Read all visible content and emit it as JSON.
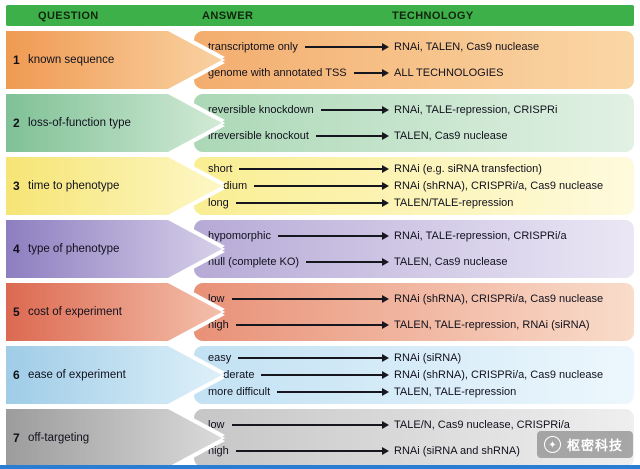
{
  "header": {
    "question_label": "QUESTION",
    "answer_label": "ANSWER",
    "technology_label": "TECHNOLOGY",
    "bg_color": "#3eb049"
  },
  "rows": [
    {
      "num": "1",
      "question": "known sequence",
      "colors": {
        "q_from": "#f09a52",
        "q_to": "#f9d2a2",
        "a_from": "#f3ad6e",
        "a_to": "#fad7a6"
      },
      "answers": [
        {
          "label": "transcriptome only",
          "tech": "RNAi, TALEN, Cas9 nuclease"
        },
        {
          "label": "genome with annotated TSS",
          "tech": "ALL TECHNOLOGIES"
        }
      ]
    },
    {
      "num": "2",
      "question": "loss-of-function type",
      "colors": {
        "q_from": "#7fc196",
        "q_to": "#d2ead6",
        "a_from": "#abd8b6",
        "a_to": "#e2f1e4"
      },
      "answers": [
        {
          "label": "reversible knockdown",
          "tech": "RNAi, TALE-repression, CRISPRi"
        },
        {
          "label": "irreversible knockout",
          "tech": "TALEN, Cas9 nuclease"
        }
      ]
    },
    {
      "num": "3",
      "question": "time to phenotype",
      "colors": {
        "q_from": "#f6e575",
        "q_to": "#fdf7c5",
        "a_from": "#faee92",
        "a_to": "#fefadd"
      },
      "answers": [
        {
          "label": "short",
          "tech": "RNAi (e.g. siRNA transfection)"
        },
        {
          "label": "medium",
          "tech": "RNAi (shRNA), CRISPRi/a, Cas9 nuclease"
        },
        {
          "label": "long",
          "tech": "TALEN/TALE-repression"
        }
      ]
    },
    {
      "num": "4",
      "question": "type of phenotype",
      "colors": {
        "q_from": "#8d7ec0",
        "q_to": "#d7d0e9",
        "a_from": "#b6aad6",
        "a_to": "#ebe7f5"
      },
      "answers": [
        {
          "label": "hypomorphic",
          "tech": "RNAi, TALE-repression, CRISPRi/a"
        },
        {
          "label": "null (complete KO)",
          "tech": "TALEN, Cas9 nuclease"
        }
      ]
    },
    {
      "num": "5",
      "question": "cost of experiment",
      "colors": {
        "q_from": "#dc6951",
        "q_to": "#f4c0ab",
        "a_from": "#e89177",
        "a_to": "#f9dccb"
      },
      "answers": [
        {
          "label": "low",
          "tech": "RNAi (shRNA), CRISPRi/a, Cas9 nuclease"
        },
        {
          "label": "high",
          "tech": "TALEN, TALE-repression, RNAi (siRNA)"
        }
      ]
    },
    {
      "num": "6",
      "question": "ease of experiment",
      "colors": {
        "q_from": "#9fcce7",
        "q_to": "#def0f9",
        "a_from": "#c2e1f3",
        "a_to": "#edf7fd"
      },
      "answers": [
        {
          "label": "easy",
          "tech": "RNAi (siRNA)"
        },
        {
          "label": "moderate",
          "tech": "RNAi (shRNA), CRISPRi/a, Cas9 nuclease"
        },
        {
          "label": "more difficult",
          "tech": "TALEN, TALE-repression"
        }
      ]
    },
    {
      "num": "7",
      "question": "off-targeting",
      "colors": {
        "q_from": "#9c9c9c",
        "q_to": "#dadada",
        "a_from": "#c6c6c6",
        "a_to": "#efefef"
      },
      "answers": [
        {
          "label": "low",
          "tech": "TALE/N, Cas9 nuclease, CRISPRi/a"
        },
        {
          "label": "high",
          "tech": "RNAi (siRNA and shRNA)"
        }
      ]
    }
  ],
  "watermark": {
    "text": "枢密科技"
  },
  "bottom_bar": {
    "color": "#2b7cd3"
  }
}
